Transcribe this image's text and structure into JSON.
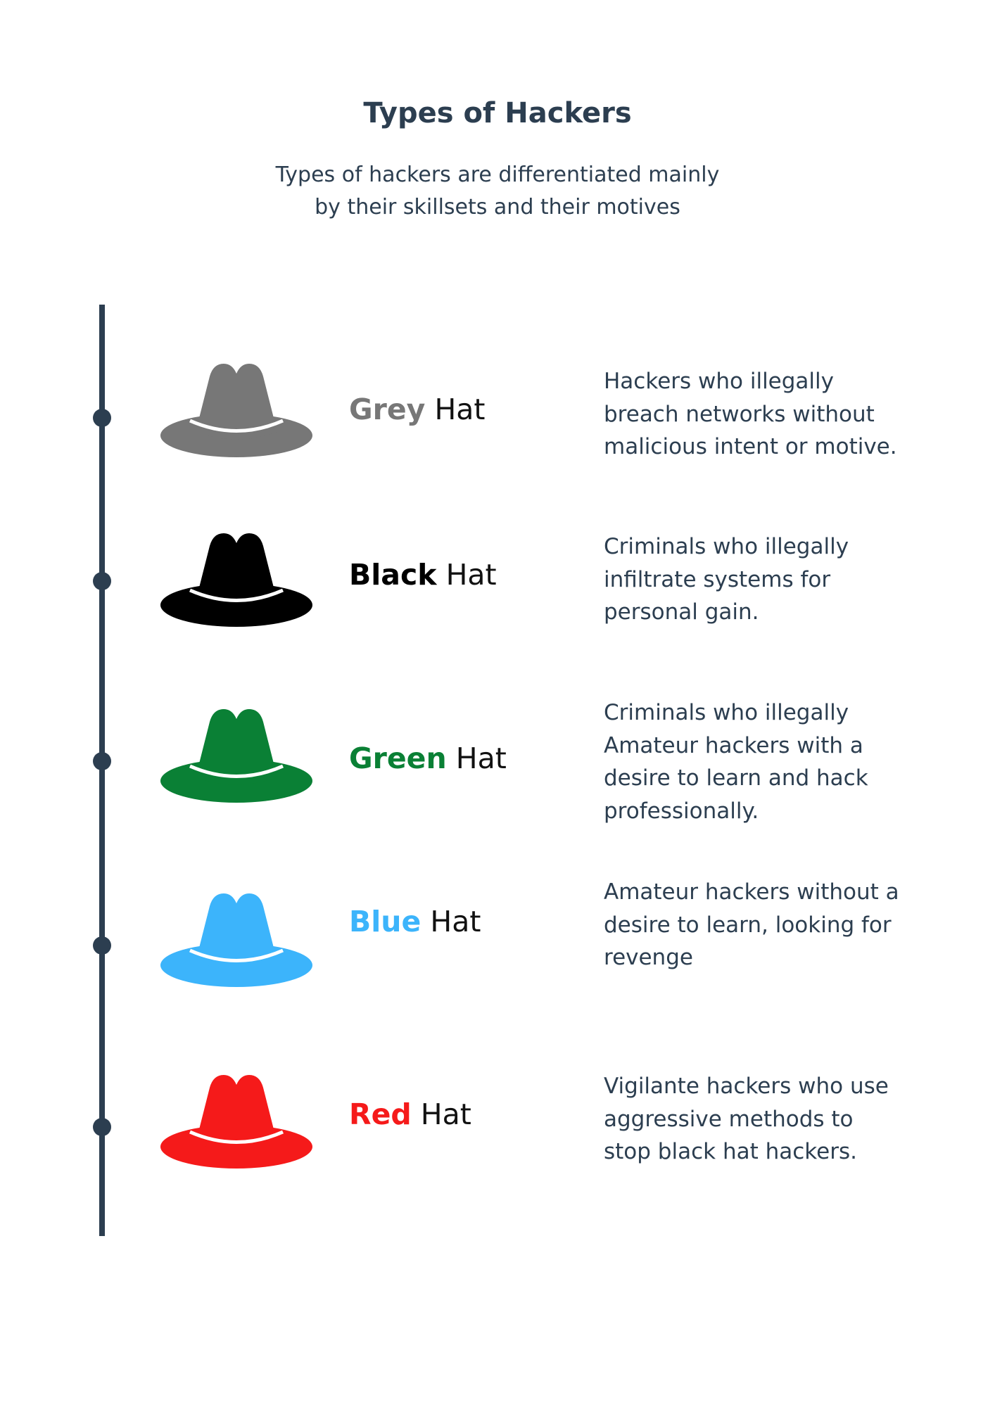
{
  "header": {
    "title": "Types of Hackers",
    "subtitle_lines": [
      "Types of hackers are differentiated mainly",
      "by their skillsets and their motives"
    ]
  },
  "colors": {
    "text": "#2c3e50",
    "timeline": "#2c3e50",
    "grey": "#777777",
    "black": "#000000",
    "green": "#0a8035",
    "blue": "#3cb4fb",
    "red": "#f51a1a"
  },
  "hats": [
    {
      "color_word": "Grey",
      "hat_word": "Hat",
      "color": "#777777",
      "icon": "grey-hat-icon",
      "description": [
        "Hackers who illegally",
        "breach networks without",
        "malicious intent or motive."
      ]
    },
    {
      "color_word": "Black",
      "hat_word": "Hat",
      "color": "#000000",
      "icon": "black-hat-icon",
      "description": [
        "Criminals who illegally",
        "infiltrate systems for",
        "personal gain."
      ]
    },
    {
      "color_word": "Green",
      "hat_word": "Hat",
      "color": "#0a8035",
      "icon": "green-hat-icon",
      "description": [
        "Criminals who illegally",
        "Amateur hackers with a",
        "desire to learn and hack",
        "professionally."
      ]
    },
    {
      "color_word": "Blue",
      "hat_word": "Hat",
      "color": "#3cb4fb",
      "icon": "blue-hat-icon",
      "description": [
        "Amateur hackers without a",
        "desire to learn, looking for",
        "revenge"
      ]
    },
    {
      "color_word": "Red",
      "hat_word": "Hat",
      "color": "#f51a1a",
      "icon": "red-hat-icon",
      "description": [
        "Vigilante hackers who use",
        "aggressive methods to",
        "stop black hat hackers."
      ]
    }
  ]
}
